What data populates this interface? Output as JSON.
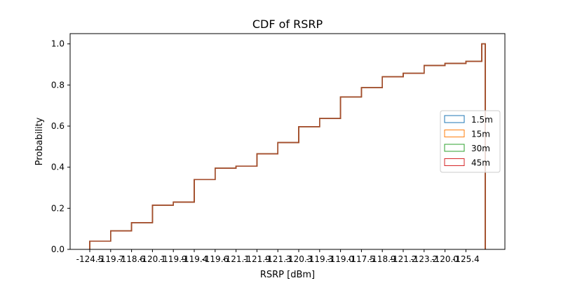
{
  "chart_data": {
    "type": "line",
    "title": "CDF of RSRP",
    "xlabel": "RSRP [dBm]",
    "ylabel": "Probability",
    "categories": [
      "-124.5",
      "-119.7",
      "-118.6",
      "-120.1",
      "-119.9",
      "-119.4",
      "-119.6",
      "-121.1",
      "-121.9",
      "-121.3",
      "-120.3",
      "-119.3",
      "-119.0",
      "-117.5",
      "-118.9",
      "-121.2",
      "-123.2",
      "-120.0",
      "-125.4"
    ],
    "cdf_values": [
      0.04,
      0.09,
      0.13,
      0.215,
      0.23,
      0.34,
      0.395,
      0.405,
      0.465,
      0.52,
      0.597,
      0.637,
      0.742,
      0.787,
      0.84,
      0.857,
      0.895,
      0.905,
      0.915
    ],
    "ylim": [
      0.0,
      1.05
    ],
    "yticks": [
      "0.0",
      "0.2",
      "0.4",
      "0.6",
      "0.8",
      "1.0"
    ],
    "series": [
      {
        "name": "1.5m",
        "color": "#1f77b4"
      },
      {
        "name": "15m",
        "color": "#ff7f0e"
      },
      {
        "name": "30m",
        "color": "#2ca02c"
      },
      {
        "name": "45m",
        "color": "#d62728"
      }
    ],
    "step_line_color": "#a0522d",
    "legend_position": "right",
    "grid": false
  }
}
